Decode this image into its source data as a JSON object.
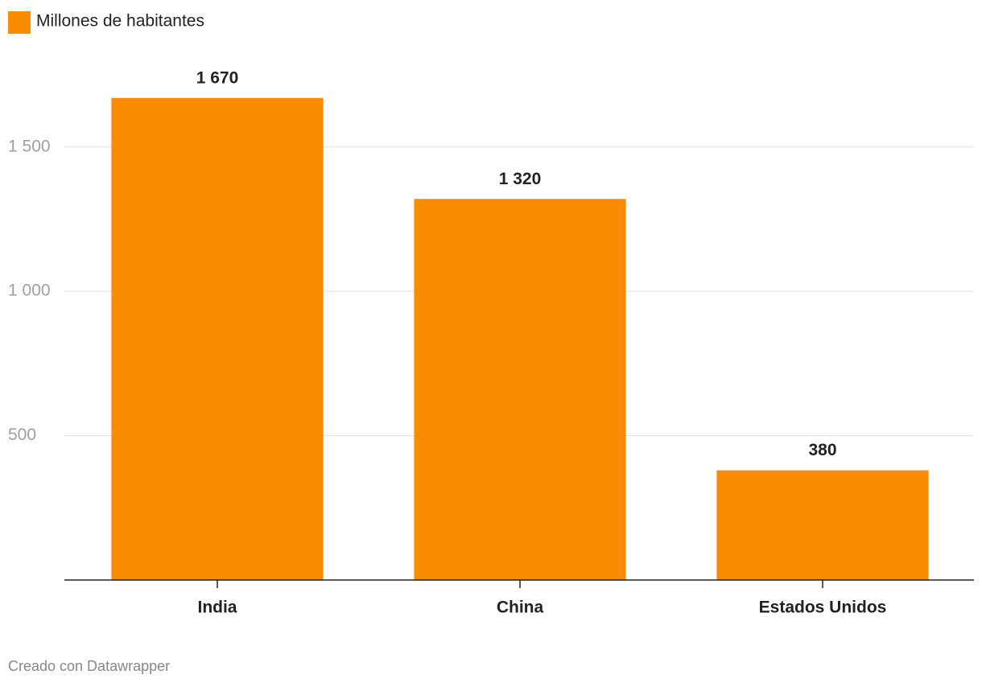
{
  "chart_data": {
    "type": "bar",
    "series": [
      {
        "name": "Millones de habitantes",
        "color": "#f98c00",
        "values": [
          1670,
          1320,
          380
        ],
        "value_labels": [
          "1 670",
          "1 320",
          "380"
        ]
      }
    ],
    "categories": [
      "India",
      "China",
      "Estados Unidos"
    ],
    "ylim": [
      0,
      1750
    ],
    "yticks": [
      500,
      {
        "value": 1000,
        "label": "1 000"
      },
      {
        "value": 1500,
        "label": "1 500"
      }
    ],
    "grid": true,
    "legend": "top-left",
    "credit": "Creado con Datawrapper"
  }
}
